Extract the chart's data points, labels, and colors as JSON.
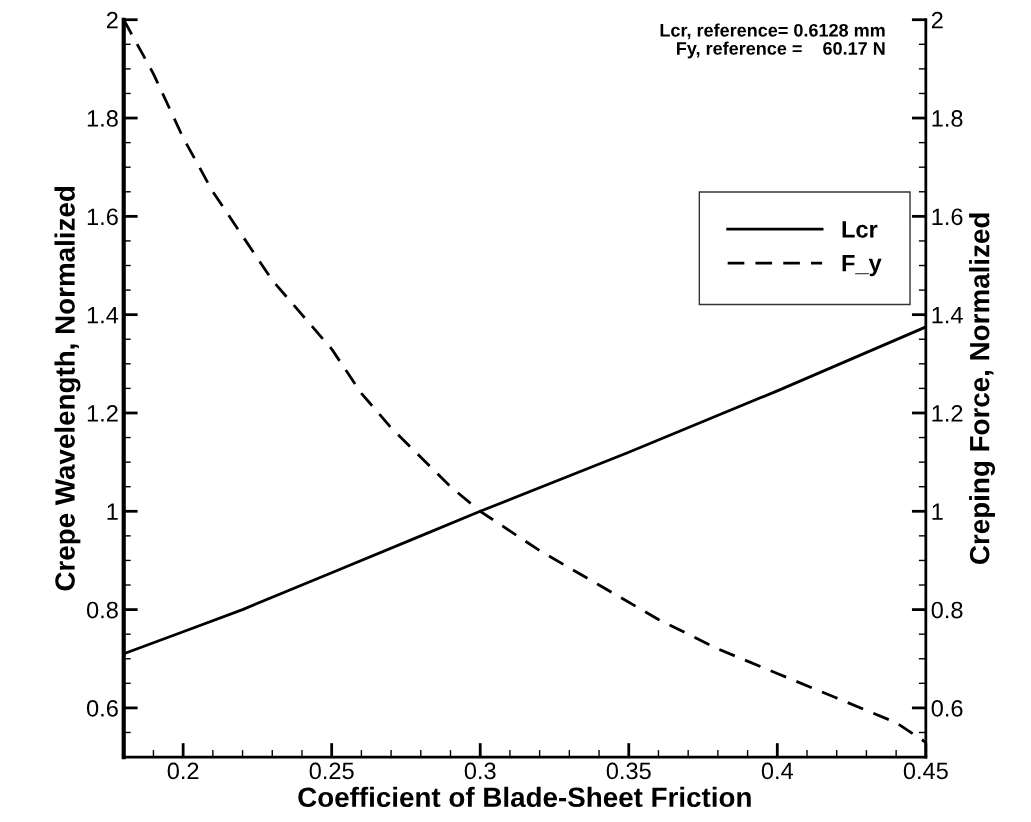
{
  "chart_data": {
    "type": "line",
    "xlabel": "Coefficient of Blade-Sheet Friction",
    "ylabel": "Crepe Wavelength, Normalized",
    "y2label": "Creping Force, Normalized",
    "annotations": [
      "Lcr, reference= 0.6128 mm\nFy, reference =    60.17 N"
    ],
    "series": [
      {
        "name": "Lcr",
        "color": "#000000",
        "line_style": "solid",
        "x": [
          0.18,
          0.2,
          0.22,
          0.25,
          0.28,
          0.3,
          0.35,
          0.4,
          0.45
        ],
        "values": [
          0.71,
          0.755,
          0.8,
          0.875,
          0.95,
          1.0,
          1.12,
          1.245,
          1.375
        ]
      },
      {
        "name": "F_y",
        "color": "#000000",
        "line_style": "dashed",
        "axis": "y2",
        "x": [
          0.18,
          0.19,
          0.2,
          0.21,
          0.22,
          0.23,
          0.24,
          0.25,
          0.26,
          0.27,
          0.28,
          0.29,
          0.3,
          0.32,
          0.34,
          0.36,
          0.38,
          0.4,
          0.42,
          0.44,
          0.45
        ],
        "values": [
          2.0,
          1.89,
          1.76,
          1.65,
          1.56,
          1.47,
          1.4,
          1.33,
          1.24,
          1.17,
          1.11,
          1.05,
          1.0,
          0.92,
          0.85,
          0.78,
          0.72,
          0.67,
          0.62,
          0.57,
          0.53
        ]
      }
    ],
    "xlim": [
      0.18,
      0.45
    ],
    "xticks": [
      0.2,
      0.25,
      0.3,
      0.35,
      0.4,
      0.45
    ],
    "ylim": [
      0.5,
      2
    ],
    "yticks": [
      0.6,
      0.8,
      1,
      1.2,
      1.4,
      1.6,
      1.8,
      2
    ],
    "y2lim": [
      0.5,
      2
    ],
    "y2ticks": [
      0.6,
      0.8,
      1,
      1.2,
      1.4,
      1.6,
      1.8,
      2
    ],
    "legend": "right",
    "grid": false,
    "marker": "none"
  }
}
